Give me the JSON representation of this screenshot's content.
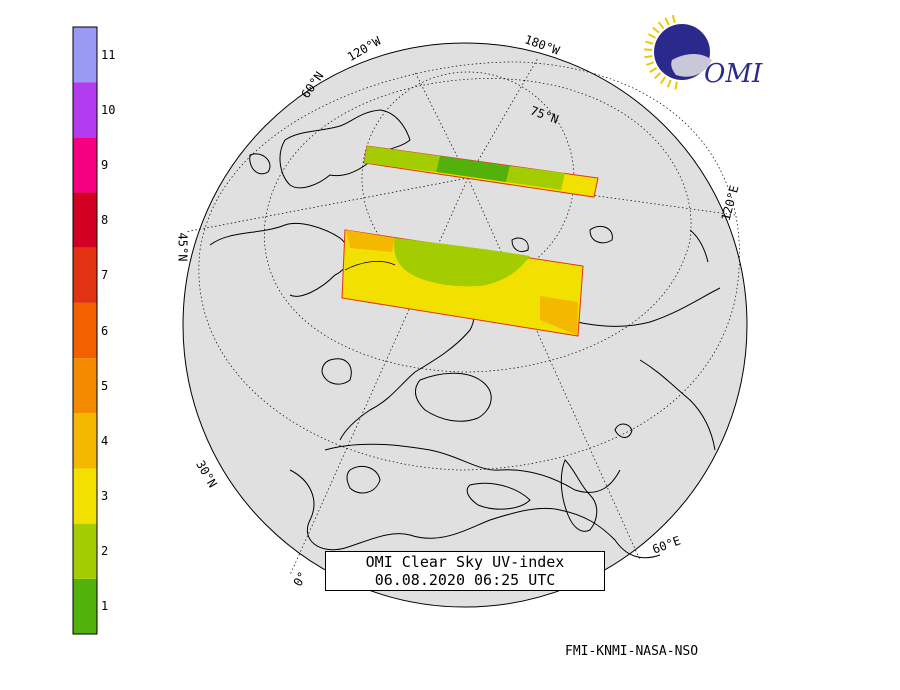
{
  "title": {
    "line1": "OMI Clear Sky UV-index",
    "line2": "06.08.2020 06:25 UTC"
  },
  "credit": "FMI-KNMI-NASA-NSO",
  "logo": {
    "text": "OMI",
    "colors": {
      "disk": "#2b2a8c",
      "rays": "#f0c800"
    }
  },
  "color_scale": {
    "labels": [
      "1",
      "2",
      "3",
      "4",
      "5",
      "6",
      "7",
      "8",
      "9",
      "10",
      "11"
    ],
    "colors": [
      "#52b10a",
      "#a3cd00",
      "#f2e100",
      "#f4b800",
      "#f48a00",
      "#f26000",
      "#e23214",
      "#d20023",
      "#f7007f",
      "#b43cf0",
      "#9a9af5"
    ]
  },
  "grid_labels": {
    "lon_120w": "120°W",
    "lon_180w": "180°W",
    "lon_120e": "120°E",
    "lon_60e": "60°E",
    "lon_0": "0°",
    "lat_60n": "60°N",
    "lat_75n": "75°N",
    "lat_45n": "45°N",
    "lat_30n": "30°N"
  },
  "map": {
    "globe_fill": "#e0e0e0",
    "swaths": [
      {
        "name": "upper-swath",
        "uv_levels": [
          2,
          1,
          2,
          3
        ]
      },
      {
        "name": "lower-swath",
        "uv_levels": [
          2,
          3,
          4
        ]
      }
    ]
  }
}
